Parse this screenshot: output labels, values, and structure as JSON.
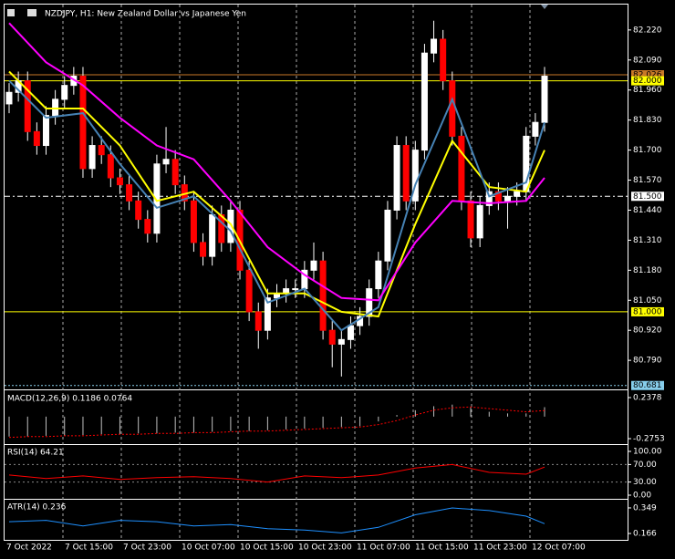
{
  "chart_data": {
    "type": "candlestick",
    "title": "NZDJPY, H1:  New Zealand Dollar vs Japanese Yen",
    "time_labels": [
      "7 Oct 2022",
      "7 Oct 15:00",
      "7 Oct 23:00",
      "10 Oct 07:00",
      "10 Oct 15:00",
      "10 Oct 23:00",
      "11 Oct 07:00",
      "11 Oct 15:00",
      "11 Oct 23:00",
      "12 Oct 07:00"
    ],
    "ylim": [
      80.68,
      82.33
    ],
    "yticks": [
      {
        "value": 82.22,
        "label": "82.220"
      },
      {
        "value": 82.09,
        "label": "82.090"
      },
      {
        "value": 81.96,
        "label": "81.960"
      },
      {
        "value": 81.83,
        "label": "81.830"
      },
      {
        "value": 81.7,
        "label": "81.700"
      },
      {
        "value": 81.57,
        "label": "81.570"
      },
      {
        "value": 81.44,
        "label": "81.440"
      },
      {
        "value": 81.31,
        "label": "81.310"
      },
      {
        "value": 81.18,
        "label": "81.180"
      },
      {
        "value": 81.05,
        "label": "81.050"
      },
      {
        "value": 80.92,
        "label": "80.920"
      },
      {
        "value": 80.79,
        "label": "80.790"
      }
    ],
    "levels": [
      {
        "value": 82.026,
        "label": "82.026",
        "color": "#c87828"
      },
      {
        "value": 82.0,
        "label": "82.000",
        "color": "#ffff00"
      },
      {
        "value": 81.5,
        "label": "81.500",
        "color": "#ffffff"
      },
      {
        "value": 81.0,
        "label": "81.000",
        "color": "#ffff00"
      },
      {
        "value": 80.681,
        "label": "80.681",
        "color": "#87ceeb"
      }
    ],
    "candles": {
      "open": [
        81.9,
        81.95,
        82.0,
        81.78,
        81.72,
        81.85,
        81.92,
        81.98,
        82.02,
        81.62,
        81.72,
        81.68,
        81.58,
        81.55,
        81.48,
        81.4,
        81.34,
        81.64,
        81.66,
        81.55,
        81.48,
        81.3,
        81.24,
        81.42,
        81.3,
        81.44,
        81.18,
        81.0,
        80.92,
        81.06,
        81.08,
        81.1,
        81.1,
        81.18,
        81.22,
        80.92,
        80.86,
        80.88,
        80.94,
        80.98,
        81.1,
        81.22,
        81.44,
        81.72,
        81.48,
        81.7,
        82.12,
        82.18,
        82.0,
        81.76,
        81.48,
        81.32,
        81.46,
        81.52,
        81.48,
        81.5,
        81.52,
        81.76,
        81.82
      ],
      "high": [
        81.99,
        82.04,
        82.04,
        81.82,
        81.89,
        81.96,
        82.02,
        82.06,
        82.06,
        81.76,
        81.76,
        81.72,
        81.62,
        81.59,
        81.52,
        81.44,
        81.68,
        81.8,
        81.7,
        81.59,
        81.52,
        81.34,
        81.46,
        81.46,
        81.48,
        81.48,
        81.22,
        81.04,
        81.1,
        81.12,
        81.14,
        81.14,
        81.22,
        81.3,
        81.26,
        80.96,
        80.92,
        80.98,
        81.02,
        81.14,
        81.26,
        81.48,
        81.76,
        81.76,
        81.74,
        82.16,
        82.26,
        82.22,
        82.04,
        81.8,
        81.52,
        81.5,
        81.56,
        81.56,
        81.54,
        81.56,
        81.8,
        81.86,
        82.06
      ],
      "low": [
        81.86,
        81.91,
        81.74,
        81.68,
        81.68,
        81.81,
        81.88,
        81.94,
        81.58,
        81.58,
        81.64,
        81.54,
        81.51,
        81.44,
        81.36,
        81.3,
        81.3,
        81.6,
        81.51,
        81.44,
        81.26,
        81.2,
        81.2,
        81.26,
        81.26,
        81.14,
        80.96,
        80.84,
        80.88,
        81.02,
        81.04,
        81.06,
        81.06,
        81.14,
        80.88,
        80.76,
        80.72,
        80.84,
        80.9,
        80.94,
        81.06,
        81.18,
        81.4,
        81.44,
        81.44,
        81.66,
        82.08,
        81.96,
        81.72,
        81.44,
        81.28,
        81.28,
        81.42,
        81.44,
        81.36,
        81.46,
        81.48,
        81.72,
        81.78
      ],
      "close": [
        81.95,
        82.0,
        81.78,
        81.72,
        81.85,
        81.92,
        81.98,
        82.02,
        81.62,
        81.72,
        81.68,
        81.58,
        81.55,
        81.48,
        81.4,
        81.34,
        81.64,
        81.66,
        81.55,
        81.48,
        81.3,
        81.24,
        81.42,
        81.3,
        81.44,
        81.18,
        81.0,
        80.92,
        81.06,
        81.08,
        81.1,
        81.1,
        81.18,
        81.22,
        80.92,
        80.86,
        80.88,
        80.94,
        80.98,
        81.1,
        81.22,
        81.44,
        81.72,
        81.48,
        81.7,
        82.12,
        82.18,
        82.0,
        81.76,
        81.48,
        81.32,
        81.46,
        81.52,
        81.48,
        81.5,
        81.52,
        81.76,
        81.82,
        82.02
      ]
    },
    "overlays": [
      {
        "color": "#ffff00",
        "x": [
          0,
          4,
          8,
          12,
          16,
          20,
          24,
          28,
          32,
          36,
          40,
          44,
          48,
          52,
          56,
          58
        ],
        "values": [
          82.04,
          81.88,
          81.88,
          81.72,
          81.48,
          81.52,
          81.38,
          81.08,
          81.08,
          81.0,
          80.98,
          81.38,
          81.74,
          81.54,
          81.52,
          81.7
        ]
      },
      {
        "color": "#4682b4",
        "x": [
          0,
          4,
          8,
          12,
          16,
          20,
          24,
          28,
          32,
          36,
          40,
          44,
          48,
          52,
          56,
          58
        ],
        "values": [
          82.0,
          81.84,
          81.86,
          81.64,
          81.45,
          81.5,
          81.35,
          81.04,
          81.1,
          80.92,
          81.02,
          81.55,
          81.92,
          81.5,
          81.56,
          81.82
        ]
      },
      {
        "color": "#ff00ff",
        "x": [
          0,
          4,
          8,
          12,
          16,
          20,
          24,
          28,
          32,
          36,
          40,
          44,
          48,
          52,
          56,
          58
        ],
        "values": [
          82.25,
          82.08,
          81.98,
          81.84,
          81.72,
          81.66,
          81.48,
          81.28,
          81.16,
          81.06,
          81.05,
          81.3,
          81.48,
          81.47,
          81.48,
          81.58
        ]
      }
    ],
    "panels": [
      {
        "type": "macd",
        "label": "MACD(12,26,9) 0.1186 0.0764",
        "ylim": [
          -0.332,
          0.306
        ],
        "yticks": [
          0.2378,
          -0.2753
        ],
        "x": [
          0,
          2,
          4,
          6,
          8,
          10,
          12,
          14,
          16,
          18,
          20,
          22,
          24,
          26,
          28,
          30,
          32,
          34,
          36,
          38,
          40,
          42,
          44,
          46,
          48,
          50,
          52,
          54,
          56,
          58
        ],
        "histogram": {
          "color": "#c0c0c0",
          "values": [
            -0.25,
            -0.25,
            -0.24,
            -0.24,
            -0.23,
            -0.22,
            -0.22,
            -0.21,
            -0.21,
            -0.2,
            -0.2,
            -0.19,
            -0.18,
            -0.18,
            -0.17,
            -0.16,
            -0.15,
            -0.14,
            -0.13,
            -0.12,
            -0.06,
            0.02,
            0.08,
            0.13,
            0.15,
            0.12,
            0.06,
            0.04,
            0.04,
            0.1186
          ]
        },
        "signal": {
          "color": "#ff0000",
          "values": [
            -0.26,
            -0.25,
            -0.25,
            -0.24,
            -0.24,
            -0.23,
            -0.22,
            -0.22,
            -0.21,
            -0.21,
            -0.2,
            -0.2,
            -0.19,
            -0.18,
            -0.18,
            -0.17,
            -0.16,
            -0.15,
            -0.14,
            -0.13,
            -0.1,
            -0.05,
            0.02,
            0.08,
            0.11,
            0.12,
            0.1,
            0.08,
            0.06,
            0.0764
          ]
        }
      },
      {
        "type": "rsi",
        "label": "RSI(14) 64.21",
        "ylim": [
          -6.25,
          112.5
        ],
        "yticks": [
          {
            "value": 100,
            "label": "100.00"
          },
          {
            "value": 70,
            "label": "70.00"
          },
          {
            "value": 30,
            "label": "30.00"
          },
          {
            "value": 0,
            "label": "0.00"
          }
        ],
        "x": [
          0,
          4,
          8,
          12,
          16,
          20,
          24,
          28,
          32,
          36,
          40,
          44,
          48,
          52,
          56,
          58
        ],
        "line": {
          "color": "#ff0000",
          "values": [
            46,
            38,
            44,
            36,
            40,
            42,
            38,
            30,
            44,
            40,
            46,
            62,
            70,
            52,
            48,
            64.21
          ]
        }
      },
      {
        "type": "atr",
        "label": "ATR(14) 0.236",
        "ylim": [
          0.127,
          0.401
        ],
        "yticks": [
          0.349,
          0.166
        ],
        "x": [
          0,
          4,
          8,
          12,
          16,
          20,
          24,
          28,
          32,
          36,
          40,
          44,
          48,
          52,
          56,
          58
        ],
        "line": {
          "color": "#1e90ff",
          "values": [
            0.25,
            0.26,
            0.22,
            0.26,
            0.25,
            0.22,
            0.23,
            0.2,
            0.19,
            0.17,
            0.21,
            0.3,
            0.349,
            0.33,
            0.29,
            0.236
          ]
        }
      }
    ]
  }
}
